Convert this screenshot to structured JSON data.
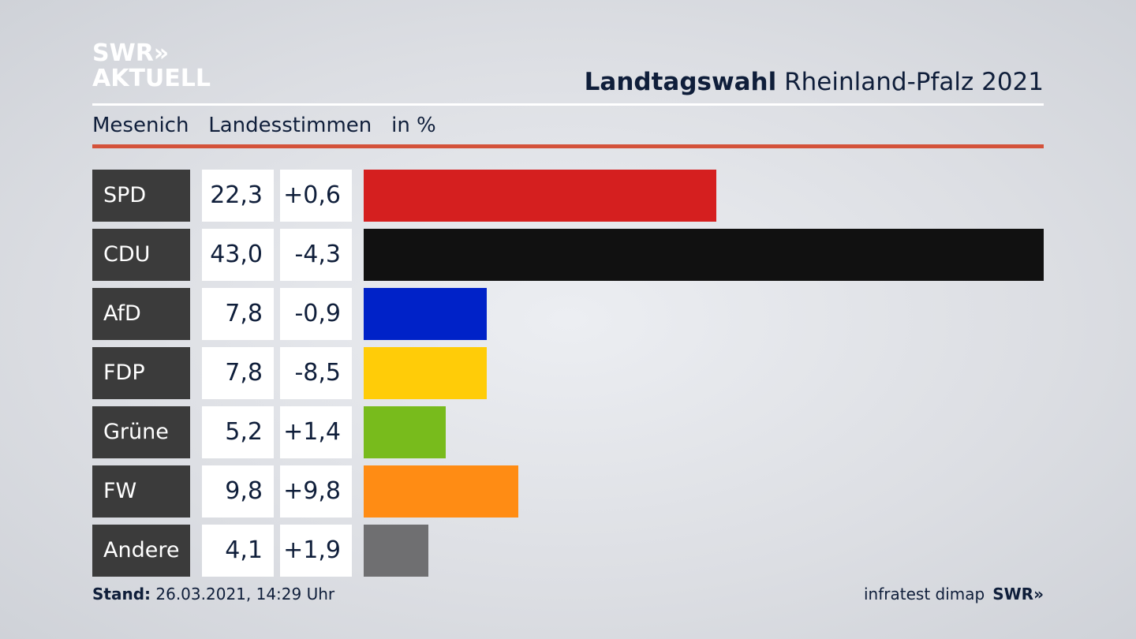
{
  "logo": {
    "line1": "SWR»",
    "line2": "AKTUELL"
  },
  "header": {
    "title_bold": "Landtagswahl",
    "title_rest": "Rheinland-Pfalz 2021"
  },
  "subtitle": {
    "place": "Mesenich",
    "type": "Landesstimmen",
    "unit": "in %"
  },
  "footer": {
    "stand_label": "Stand:",
    "stand_value": "26.03.2021, 14:29 Uhr",
    "source": "infratest dimap",
    "brand": "SWR»"
  },
  "chart_data": {
    "type": "bar",
    "orientation": "horizontal",
    "title": "Landtagswahl Rheinland-Pfalz 2021",
    "subtitle": "Mesenich Landesstimmen in %",
    "categories": [
      "SPD",
      "CDU",
      "AfD",
      "FDP",
      "Grüne",
      "FW",
      "Andere"
    ],
    "values": [
      22.3,
      43.0,
      7.8,
      7.8,
      5.2,
      9.8,
      4.1
    ],
    "value_labels": [
      "22,3",
      "43,0",
      "7,8",
      "7,8",
      "5,2",
      "9,8",
      "4,1"
    ],
    "diff_labels": [
      "+0,6",
      "-4,3",
      "-0,9",
      "-8,5",
      "+1,4",
      "+9,8",
      "+1,9"
    ],
    "diffs": [
      0.6,
      -4.3,
      -0.9,
      -8.5,
      1.4,
      9.8,
      1.9
    ],
    "colors": [
      "#d51f1f",
      "#111111",
      "#0022c8",
      "#ffcc08",
      "#78bb1c",
      "#ff8c14",
      "#6f6f71"
    ],
    "xlim": [
      0,
      43.0
    ]
  }
}
